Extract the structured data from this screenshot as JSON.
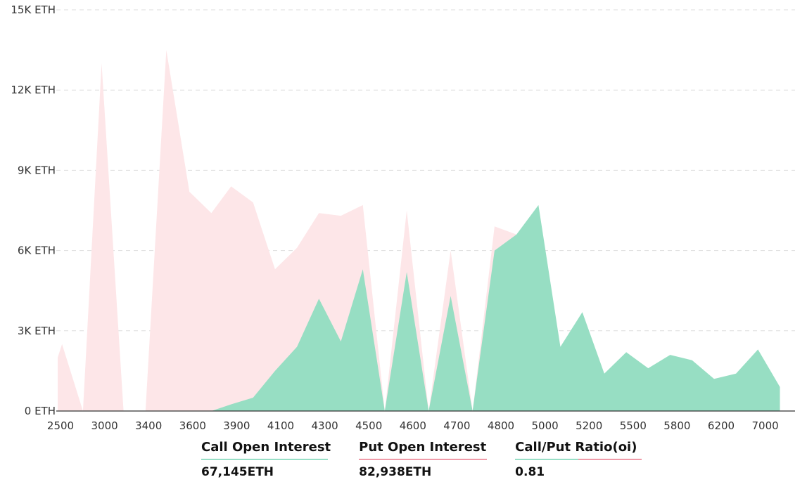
{
  "chart_data": {
    "type": "area",
    "y_tick_labels": [
      "0 ETH",
      "3K ETH",
      "6K ETH",
      "9K ETH",
      "12K ETH",
      "15K ETH"
    ],
    "y_tick_values": [
      0,
      3000,
      6000,
      9000,
      12000,
      15000
    ],
    "ylim": [
      0,
      15000
    ],
    "x_tick_labels": [
      "2500",
      "3000",
      "3400",
      "3600",
      "3900",
      "4100",
      "4300",
      "4500",
      "4600",
      "4700",
      "4800",
      "5000",
      "5200",
      "5500",
      "5800",
      "6200",
      "7000"
    ],
    "grid": true,
    "series": [
      {
        "key": "put",
        "color": "#fde6e8",
        "points": [
          [
            0,
            2000
          ],
          [
            0.2,
            2500
          ],
          [
            1.15,
            0
          ],
          [
            2.0,
            13000
          ],
          [
            3.0,
            0
          ],
          [
            4.0,
            0
          ],
          [
            4.95,
            13500
          ],
          [
            6.0,
            8200
          ],
          [
            7.0,
            7400
          ],
          [
            7.9,
            8400
          ],
          [
            8.9,
            7800
          ],
          [
            9.9,
            5300
          ],
          [
            10.9,
            6100
          ],
          [
            11.9,
            7400
          ],
          [
            12.9,
            7300
          ],
          [
            13.9,
            7700
          ],
          [
            14.9,
            0
          ],
          [
            15.9,
            7500
          ],
          [
            16.9,
            0
          ],
          [
            17.9,
            6000
          ],
          [
            18.9,
            0
          ],
          [
            19.9,
            6900
          ],
          [
            20.9,
            6600
          ],
          [
            21.9,
            0
          ],
          [
            33.5,
            0
          ]
        ]
      },
      {
        "key": "call",
        "color": "#97dec3",
        "points": [
          [
            7.0,
            0
          ],
          [
            7.9,
            250
          ],
          [
            8.9,
            500
          ],
          [
            9.9,
            1500
          ],
          [
            10.9,
            2400
          ],
          [
            11.9,
            4200
          ],
          [
            12.9,
            2600
          ],
          [
            13.9,
            5300
          ],
          [
            14.9,
            0
          ],
          [
            15.9,
            5200
          ],
          [
            16.9,
            0
          ],
          [
            17.9,
            4300
          ],
          [
            18.9,
            0
          ],
          [
            19.9,
            6000
          ],
          [
            20.9,
            6600
          ],
          [
            21.9,
            7700
          ],
          [
            22.9,
            2400
          ],
          [
            23.9,
            3700
          ],
          [
            24.9,
            1400
          ],
          [
            25.9,
            2200
          ],
          [
            26.9,
            1600
          ],
          [
            27.9,
            2100
          ],
          [
            28.9,
            1900
          ],
          [
            29.9,
            1200
          ],
          [
            30.9,
            1400
          ],
          [
            31.9,
            2300
          ],
          [
            32.9,
            900
          ]
        ]
      }
    ]
  },
  "stats": {
    "call_label": "Call Open Interest",
    "call_value": "67,145ETH",
    "put_label": "Put Open Interest",
    "put_value": "82,938ETH",
    "ratio_label": "Call/Put Ratio(oi)",
    "ratio_value": "0.81"
  }
}
